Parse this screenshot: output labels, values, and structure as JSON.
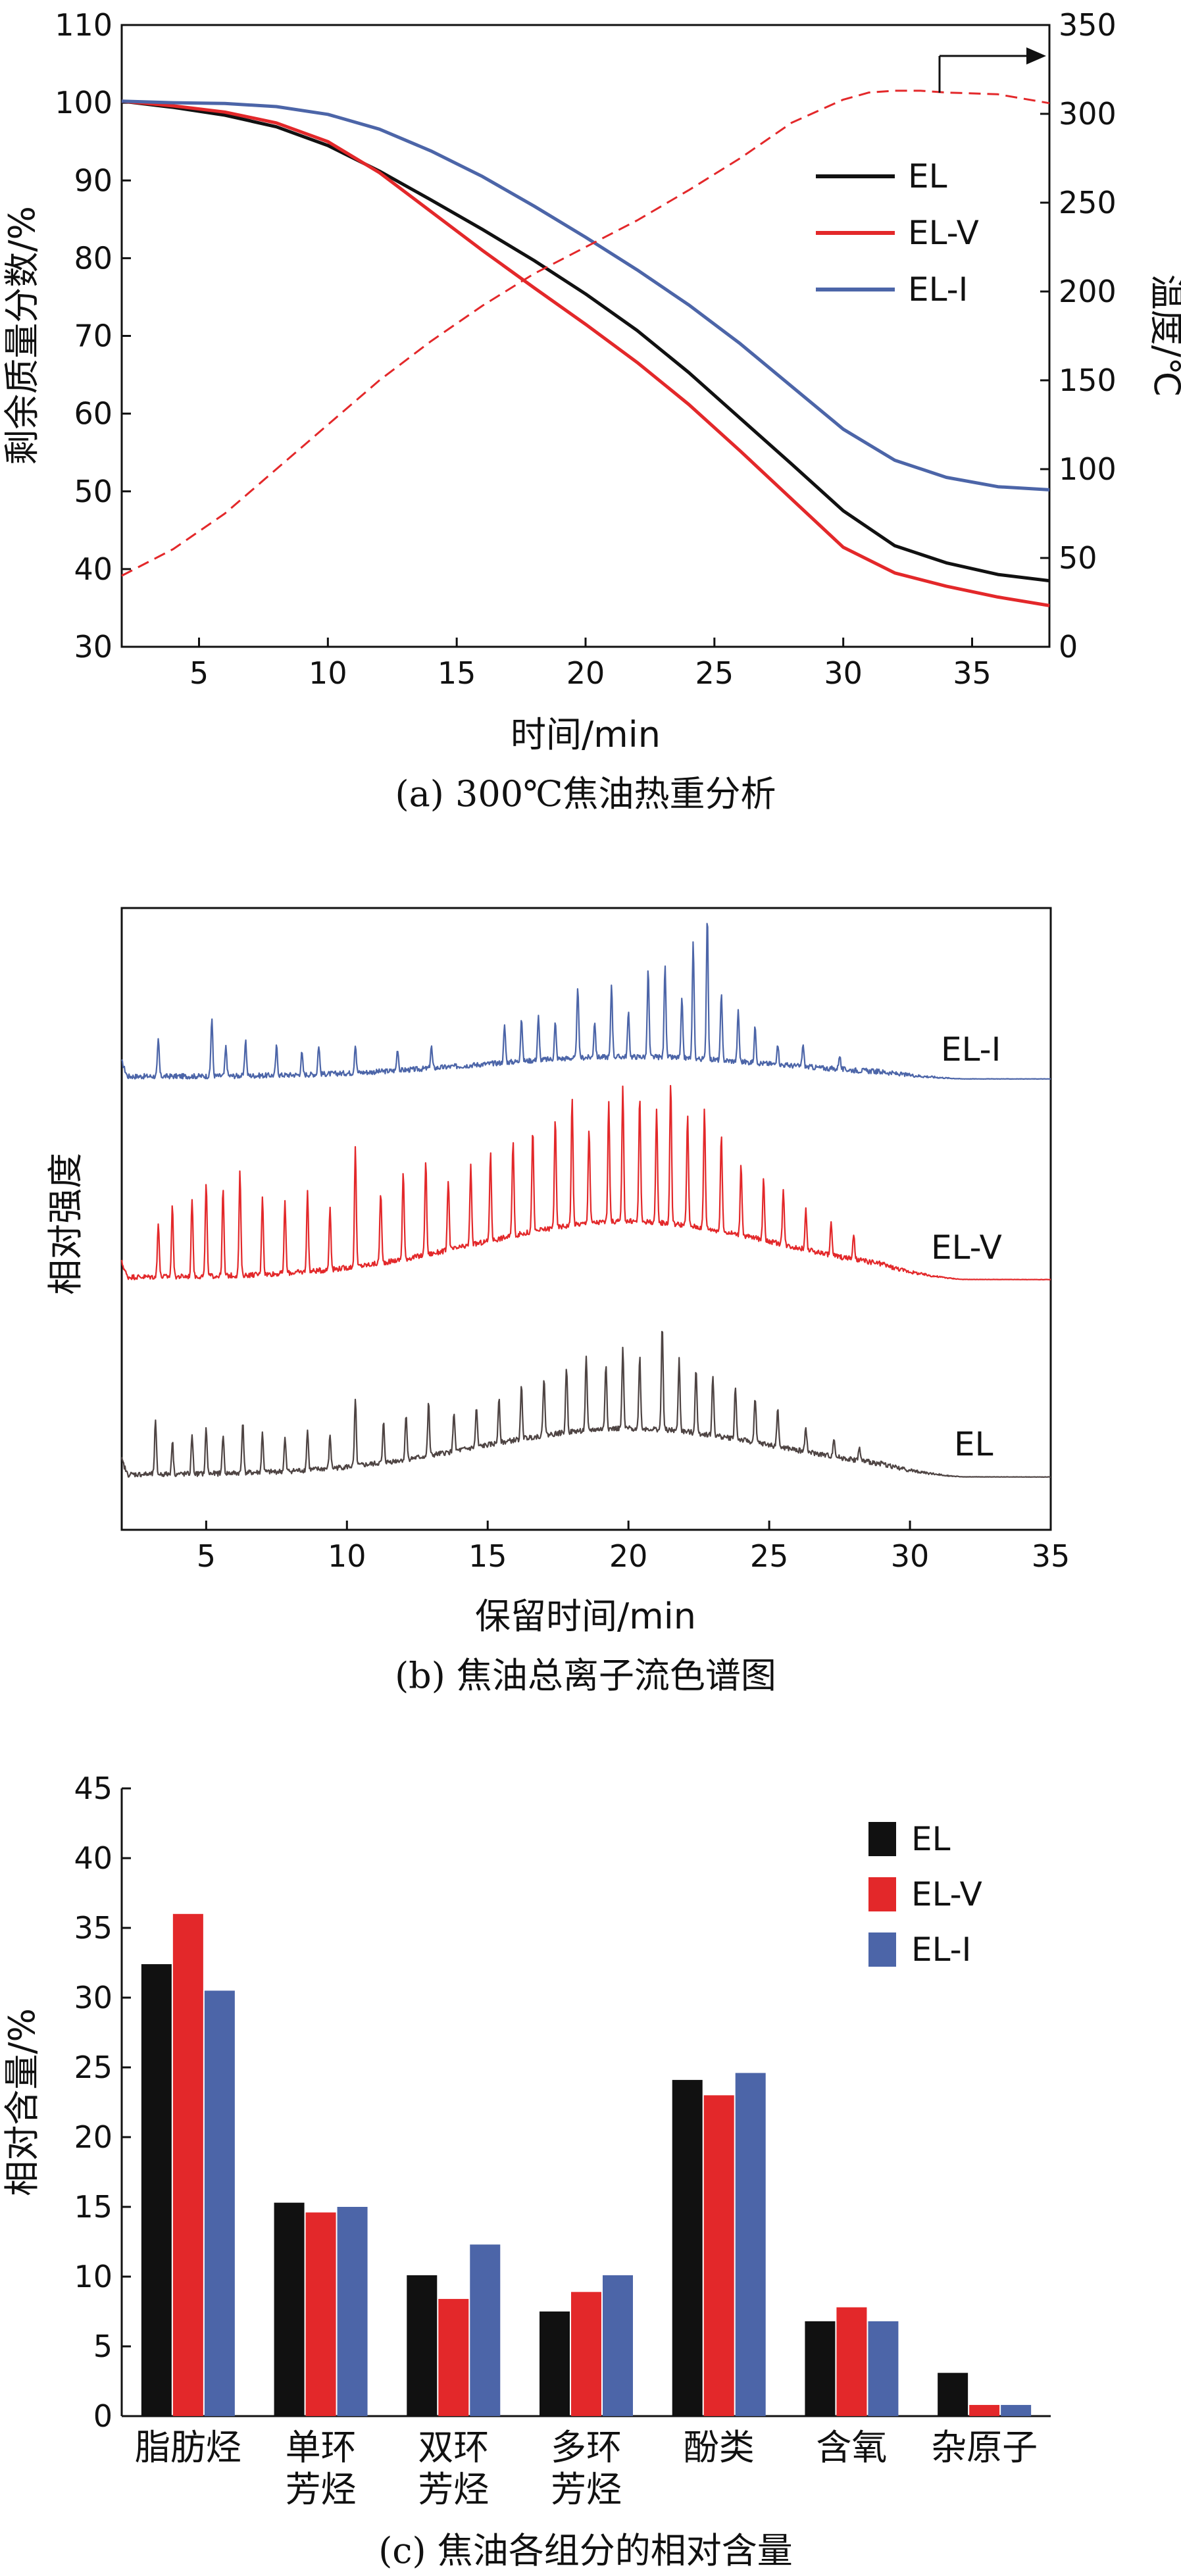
{
  "chart_data": [
    {
      "type": "line",
      "caption": "(a) 300℃焦油热重分析",
      "xlabel": "时间/min",
      "ylabel": "剩余质量分数/%",
      "ylabel_right": "温度/℃",
      "xlim": [
        2,
        38
      ],
      "ylim": [
        30,
        110
      ],
      "ylim_right": [
        0,
        350
      ],
      "x_ticks": [
        5,
        10,
        15,
        20,
        25,
        30,
        35
      ],
      "y_ticks": [
        30,
        40,
        50,
        60,
        70,
        80,
        90,
        100,
        110
      ],
      "y_right_ticks": [
        0,
        50,
        100,
        150,
        200,
        250,
        300,
        350
      ],
      "series": [
        {
          "name": "EL",
          "color": "#111111",
          "x": [
            2,
            4,
            6,
            8,
            10,
            12,
            14,
            16,
            18,
            20,
            22,
            24,
            26,
            28,
            30,
            32,
            34,
            36,
            38
          ],
          "values": [
            100.2,
            99.4,
            98.4,
            96.9,
            94.5,
            91.2,
            87.5,
            83.7,
            79.7,
            75.4,
            70.7,
            65.3,
            59.4,
            53.5,
            47.5,
            43.0,
            40.8,
            39.3,
            38.5
          ]
        },
        {
          "name": "EL-V",
          "color": "#e3282a",
          "x": [
            2,
            4,
            6,
            8,
            10,
            12,
            14,
            16,
            18,
            20,
            22,
            24,
            26,
            28,
            30,
            32,
            34,
            36,
            38
          ],
          "values": [
            100.2,
            99.6,
            98.8,
            97.4,
            95.0,
            91.0,
            86.0,
            81.0,
            76.2,
            71.5,
            66.6,
            61.2,
            55.2,
            49.0,
            42.8,
            39.5,
            37.8,
            36.4,
            35.3
          ]
        },
        {
          "name": "EL-I",
          "color": "#4c65a8",
          "x": [
            2,
            4,
            6,
            8,
            10,
            12,
            14,
            16,
            18,
            20,
            22,
            24,
            26,
            28,
            30,
            32,
            34,
            36,
            38
          ],
          "values": [
            100.2,
            100.0,
            99.9,
            99.5,
            98.5,
            96.6,
            93.8,
            90.5,
            86.7,
            82.7,
            78.5,
            74.0,
            69.0,
            63.5,
            58.0,
            54.0,
            51.8,
            50.6,
            50.2
          ]
        },
        {
          "name": "温度",
          "color": "#e3282a",
          "dashed": true,
          "axis": "right",
          "x": [
            2,
            4,
            6,
            8,
            10,
            12,
            14,
            16,
            18,
            20,
            22,
            24,
            26,
            28,
            30,
            31,
            32,
            33,
            34,
            36,
            38
          ],
          "values": [
            40,
            55,
            75,
            100,
            125,
            150,
            172,
            192,
            210,
            225,
            240,
            257,
            275,
            295,
            308,
            312,
            313,
            313,
            312,
            311,
            306
          ]
        }
      ],
      "legend_position": "right"
    },
    {
      "type": "line",
      "caption": "(b) 焦油总离子流色谱图",
      "xlabel": "保留时间/min",
      "ylabel": "相对强度",
      "xlim": [
        2,
        35
      ],
      "x_ticks": [
        5,
        10,
        15,
        20,
        25,
        30,
        35
      ],
      "series": [
        {
          "name": "EL-I",
          "color": "#4c65a8",
          "label": "EL-I",
          "peaks": [
            [
              3.3,
              0.5
            ],
            [
              5.2,
              0.8
            ],
            [
              5.7,
              0.4
            ],
            [
              6.4,
              0.5
            ],
            [
              7.5,
              0.4
            ],
            [
              8.4,
              0.3
            ],
            [
              9.0,
              0.4
            ],
            [
              10.3,
              0.4
            ],
            [
              11.8,
              0.3
            ],
            [
              13.0,
              0.3
            ],
            [
              15.6,
              0.5
            ],
            [
              16.2,
              0.6
            ],
            [
              16.8,
              0.6
            ],
            [
              17.4,
              0.5
            ],
            [
              18.2,
              1.0
            ],
            [
              18.8,
              0.5
            ],
            [
              19.4,
              1.0
            ],
            [
              20.0,
              0.6
            ],
            [
              20.7,
              1.2
            ],
            [
              21.3,
              1.3
            ],
            [
              21.9,
              0.8
            ],
            [
              22.3,
              1.6
            ],
            [
              22.8,
              2.0
            ],
            [
              23.3,
              0.9
            ],
            [
              23.9,
              0.7
            ],
            [
              24.5,
              0.5
            ],
            [
              25.3,
              0.3
            ],
            [
              26.2,
              0.3
            ],
            [
              27.5,
              0.2
            ]
          ]
        },
        {
          "name": "EL-V",
          "color": "#e3282a",
          "label": "EL-V",
          "peaks": [
            [
              3.3,
              0.7
            ],
            [
              3.8,
              0.9
            ],
            [
              4.5,
              1.0
            ],
            [
              5.0,
              1.2
            ],
            [
              5.6,
              1.1
            ],
            [
              6.2,
              1.3
            ],
            [
              7.0,
              1.0
            ],
            [
              7.8,
              0.9
            ],
            [
              8.6,
              1.0
            ],
            [
              9.4,
              0.8
            ],
            [
              10.3,
              1.5
            ],
            [
              11.2,
              0.9
            ],
            [
              12.0,
              1.1
            ],
            [
              12.8,
              1.2
            ],
            [
              13.6,
              0.9
            ],
            [
              14.4,
              1.0
            ],
            [
              15.1,
              1.1
            ],
            [
              15.9,
              1.2
            ],
            [
              16.6,
              1.3
            ],
            [
              17.4,
              1.4
            ],
            [
              18.0,
              1.6
            ],
            [
              18.6,
              1.2
            ],
            [
              19.3,
              1.5
            ],
            [
              19.8,
              1.7
            ],
            [
              20.4,
              1.6
            ],
            [
              21.0,
              1.4
            ],
            [
              21.5,
              1.8
            ],
            [
              22.1,
              1.4
            ],
            [
              22.7,
              1.5
            ],
            [
              23.3,
              1.2
            ],
            [
              24.0,
              0.9
            ],
            [
              24.8,
              0.8
            ],
            [
              25.5,
              0.7
            ],
            [
              26.3,
              0.5
            ],
            [
              27.2,
              0.4
            ],
            [
              28.0,
              0.3
            ]
          ]
        },
        {
          "name": "EL",
          "color": "#4e4443",
          "label": "EL",
          "peaks": [
            [
              3.2,
              0.8
            ],
            [
              3.8,
              0.5
            ],
            [
              4.5,
              0.6
            ],
            [
              5.0,
              0.7
            ],
            [
              5.6,
              0.6
            ],
            [
              6.3,
              0.8
            ],
            [
              7.0,
              0.6
            ],
            [
              7.8,
              0.5
            ],
            [
              8.6,
              0.6
            ],
            [
              9.4,
              0.5
            ],
            [
              10.3,
              1.0
            ],
            [
              11.3,
              0.6
            ],
            [
              12.1,
              0.7
            ],
            [
              12.9,
              0.8
            ],
            [
              13.8,
              0.6
            ],
            [
              14.6,
              0.6
            ],
            [
              15.4,
              0.7
            ],
            [
              16.2,
              0.8
            ],
            [
              17.0,
              0.9
            ],
            [
              17.8,
              1.0
            ],
            [
              18.5,
              1.1
            ],
            [
              19.2,
              1.0
            ],
            [
              19.8,
              1.2
            ],
            [
              20.4,
              1.1
            ],
            [
              21.2,
              1.6
            ],
            [
              21.8,
              1.1
            ],
            [
              22.4,
              1.0
            ],
            [
              23.0,
              0.9
            ],
            [
              23.8,
              0.8
            ],
            [
              24.5,
              0.7
            ],
            [
              25.3,
              0.6
            ],
            [
              26.3,
              0.4
            ],
            [
              27.3,
              0.3
            ],
            [
              28.2,
              0.2
            ]
          ]
        }
      ]
    },
    {
      "type": "bar",
      "caption": "(c) 焦油各组分的相对含量",
      "ylabel": "相对含量/%",
      "ylim": [
        0,
        45
      ],
      "y_ticks": [
        0,
        5,
        10,
        15,
        20,
        25,
        30,
        35,
        40,
        45
      ],
      "categories": [
        [
          "脂肪烃"
        ],
        [
          "单环",
          "芳烃"
        ],
        [
          "双环",
          "芳烃"
        ],
        [
          "多环",
          "芳烃"
        ],
        [
          "酚类"
        ],
        [
          "含氧"
        ],
        [
          "杂原子"
        ]
      ],
      "series": [
        {
          "name": "EL",
          "color": "#111111",
          "values": [
            32.4,
            15.3,
            10.1,
            7.5,
            24.1,
            6.8,
            3.1
          ]
        },
        {
          "name": "EL-V",
          "color": "#e3282a",
          "values": [
            36.0,
            14.6,
            8.4,
            8.9,
            23.0,
            7.8,
            0.8
          ]
        },
        {
          "name": "EL-I",
          "color": "#4c65a8",
          "values": [
            30.5,
            15.0,
            12.3,
            10.1,
            24.6,
            6.8,
            0.8
          ]
        }
      ],
      "legend_position": "top-right"
    }
  ]
}
